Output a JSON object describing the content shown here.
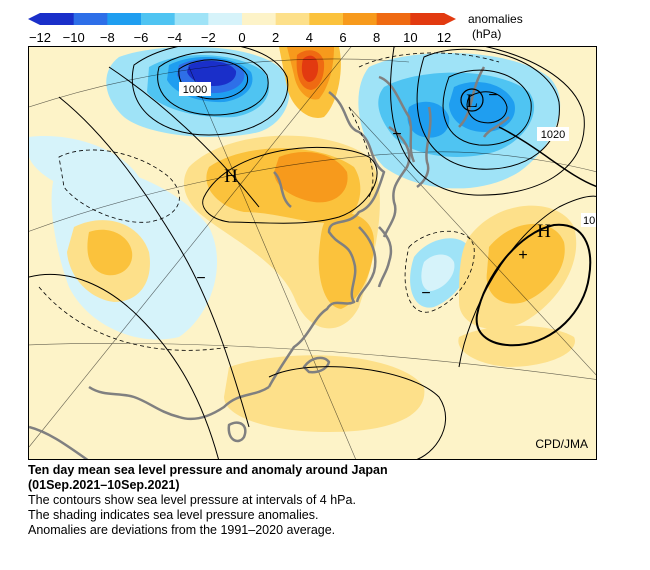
{
  "legend": {
    "title_line1": "anomalies",
    "title_line2": "(hPa)",
    "ticks": [
      "−12",
      "−10",
      "−8",
      "−6",
      "−4",
      "−2",
      "0",
      "2",
      "4",
      "6",
      "8",
      "10",
      "12"
    ],
    "colors": [
      "#1a2fc9",
      "#2e6fe8",
      "#1f9ef0",
      "#4fc4f2",
      "#9fe3f7",
      "#d6f3fa",
      "#fdf3c8",
      "#fde08a",
      "#fbc23c",
      "#f79a1c",
      "#ef6a12",
      "#e23a10"
    ]
  },
  "map": {
    "contour_labels": [
      "1000",
      "1020",
      "10"
    ],
    "systems": [
      {
        "letter": "H",
        "name": "mongolia-high"
      },
      {
        "letter": "H",
        "name": "pacific-high"
      },
      {
        "letter": "L",
        "name": "okhotsk-low"
      }
    ],
    "signs": [
      "−",
      "−",
      "−",
      "−",
      "+"
    ],
    "credit": "CPD/JMA"
  },
  "caption": {
    "title": "Ten day mean sea level pressure and anomaly around Japan",
    "period": "(01Sep.2021–10Sep.2021)",
    "line1": "The contours show sea level pressure at intervals of 4 hPa.",
    "line2": "The shading indicates sea level pressure anomalies.",
    "line3": "Anomalies are deviations from the 1991–2020 average."
  }
}
